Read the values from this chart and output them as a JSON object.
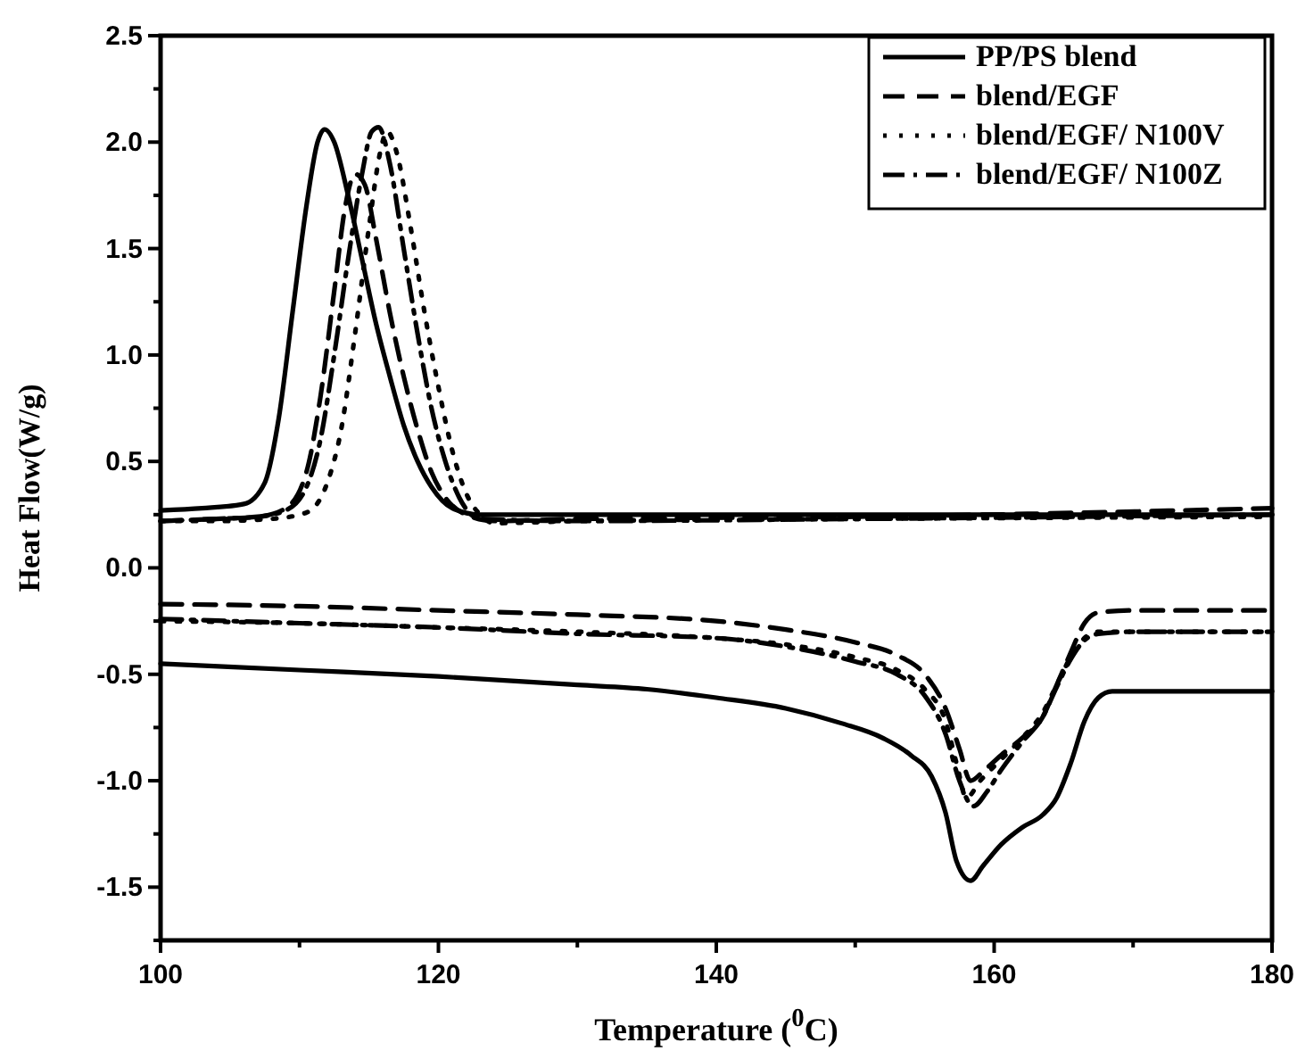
{
  "chart_data": {
    "type": "line",
    "xlabel": "Temperature ($^{0}$C)",
    "ylabel": "Heat Flow(W/g)",
    "xlim": [
      100,
      180
    ],
    "ylim": [
      -1.75,
      2.5
    ],
    "xticks": [
      100,
      {
        "value": 110,
        "label": null
      },
      120,
      {
        "value": 130,
        "label": null
      },
      140,
      {
        "value": 150,
        "label": null
      },
      160,
      {
        "value": 170,
        "label": null
      },
      180
    ],
    "yticks": [
      {
        "value": -1.75,
        "label": null
      },
      -1.5,
      {
        "value": -1.25,
        "label": null
      },
      {
        "value": -1,
        "label": "-1.0"
      },
      {
        "value": -0.75,
        "label": null
      },
      -0.5,
      {
        "value": -0.25,
        "label": null
      },
      {
        "value": 0,
        "label": "0.0"
      },
      {
        "value": 0.25,
        "label": null
      },
      0.5,
      {
        "value": 0.75,
        "label": null
      },
      {
        "value": 1,
        "label": "1.0"
      },
      {
        "value": 1.25,
        "label": null
      },
      1.5,
      {
        "value": 1.75,
        "label": null
      },
      {
        "value": 2,
        "label": "2.0"
      },
      {
        "value": 2.25,
        "label": null
      },
      2.5
    ],
    "grid": false,
    "legend": "top right",
    "marker": "none",
    "series": [
      {
        "name": "PP/PS blend",
        "color": "#000000",
        "line_style": "solid",
        "x": [
          100,
          103,
          106,
          107.5,
          108.5,
          109.5,
          110.5,
          111.3,
          111.8,
          112.5,
          113.5,
          114.5,
          115.5,
          116.5,
          117.5,
          118.5,
          119.5,
          121,
          123,
          130,
          150,
          180
        ],
        "values": [
          0.27,
          0.28,
          0.3,
          0.4,
          0.7,
          1.2,
          1.7,
          2.0,
          2.06,
          2.0,
          1.75,
          1.45,
          1.15,
          0.9,
          0.67,
          0.5,
          0.38,
          0.28,
          0.25,
          0.25,
          0.25,
          0.25
        ]
      },
      {
        "name": "blend/EGF",
        "color": "#000000",
        "line_style": "dashed",
        "x": [
          100,
          104,
          107,
          109,
          110.5,
          111.5,
          112.5,
          113.3,
          114,
          114.7,
          115.5,
          116.5,
          117.5,
          118.5,
          119.5,
          120.5,
          122,
          124,
          130,
          150,
          180
        ],
        "values": [
          0.22,
          0.23,
          0.24,
          0.28,
          0.45,
          0.8,
          1.3,
          1.7,
          1.85,
          1.8,
          1.55,
          1.2,
          0.9,
          0.65,
          0.45,
          0.33,
          0.25,
          0.22,
          0.23,
          0.24,
          0.28
        ]
      },
      {
        "name": "blend/EGF/ N100V",
        "color": "#000000",
        "line_style": "dotted",
        "x": [
          100,
          104,
          108,
          110.5,
          112,
          113,
          114,
          115,
          115.8,
          116.3,
          117,
          118,
          119,
          120,
          121,
          122,
          123,
          124,
          130,
          150,
          180
        ],
        "values": [
          0.22,
          0.22,
          0.23,
          0.26,
          0.4,
          0.65,
          1.1,
          1.6,
          1.95,
          2.05,
          1.95,
          1.6,
          1.2,
          0.85,
          0.55,
          0.35,
          0.25,
          0.21,
          0.22,
          0.23,
          0.24
        ]
      },
      {
        "name": "blend/EGF/ N100Z",
        "color": "#000000",
        "line_style": "dashdot",
        "x": [
          100,
          104,
          107,
          109,
          110.5,
          111.5,
          112.5,
          113.5,
          114.5,
          115.2,
          115.7,
          116.5,
          117.5,
          118.5,
          119.5,
          120.5,
          121.5,
          123,
          130,
          150,
          180
        ],
        "values": [
          0.22,
          0.23,
          0.24,
          0.27,
          0.38,
          0.6,
          1.0,
          1.45,
          1.85,
          2.05,
          2.07,
          1.9,
          1.5,
          1.1,
          0.75,
          0.5,
          0.33,
          0.23,
          0.22,
          0.23,
          0.25
        ]
      },
      {
        "color": "#000000",
        "line_style": "solid",
        "x": [
          100,
          110,
          120,
          130,
          135,
          140,
          145,
          149,
          152,
          154,
          155.5,
          156.5,
          157.3,
          158.3,
          159.2,
          160.5,
          162,
          163.5,
          164.5,
          165.5,
          166.5,
          167.5,
          168.5,
          170,
          180
        ],
        "values": [
          -0.45,
          -0.48,
          -0.51,
          -0.55,
          -0.57,
          -0.61,
          -0.66,
          -0.73,
          -0.8,
          -0.88,
          -0.98,
          -1.15,
          -1.38,
          -1.47,
          -1.4,
          -1.3,
          -1.22,
          -1.16,
          -1.08,
          -0.92,
          -0.72,
          -0.61,
          -0.58,
          -0.58,
          -0.58
        ]
      },
      {
        "color": "#000000",
        "line_style": "dashed",
        "x": [
          100,
          110,
          120,
          130,
          140,
          145,
          150,
          153,
          155,
          156.5,
          157.5,
          158.3,
          159.3,
          160.5,
          162,
          163.5,
          164.5,
          165.5,
          166.5,
          167.5,
          170,
          180
        ],
        "values": [
          -0.17,
          -0.18,
          -0.2,
          -0.22,
          -0.25,
          -0.29,
          -0.35,
          -0.41,
          -0.5,
          -0.66,
          -0.85,
          -1.0,
          -0.95,
          -0.88,
          -0.8,
          -0.7,
          -0.55,
          -0.4,
          -0.26,
          -0.21,
          -0.2,
          -0.2
        ]
      },
      {
        "color": "#000000",
        "line_style": "dotted",
        "x": [
          100,
          110,
          120,
          130,
          140,
          145,
          150,
          153,
          155,
          156.5,
          157.3,
          158,
          159,
          160.5,
          162,
          163.5,
          164.5,
          165.5,
          166.5,
          167.5,
          170,
          180
        ],
        "values": [
          -0.25,
          -0.26,
          -0.28,
          -0.3,
          -0.33,
          -0.36,
          -0.42,
          -0.48,
          -0.57,
          -0.72,
          -0.92,
          -1.08,
          -1.0,
          -0.9,
          -0.8,
          -0.68,
          -0.55,
          -0.42,
          -0.33,
          -0.3,
          -0.3,
          -0.3
        ]
      },
      {
        "color": "#000000",
        "line_style": "dashdot",
        "x": [
          100,
          110,
          120,
          130,
          140,
          145,
          150,
          153,
          155,
          156.5,
          157.5,
          158.5,
          159.5,
          160.5,
          162,
          163.5,
          164.5,
          165.5,
          166.5,
          167.5,
          170,
          180
        ],
        "values": [
          -0.24,
          -0.26,
          -0.28,
          -0.31,
          -0.33,
          -0.37,
          -0.44,
          -0.5,
          -0.6,
          -0.78,
          -1.0,
          -1.12,
          -1.05,
          -0.95,
          -0.82,
          -0.7,
          -0.56,
          -0.43,
          -0.34,
          -0.31,
          -0.3,
          -0.3
        ]
      }
    ]
  }
}
